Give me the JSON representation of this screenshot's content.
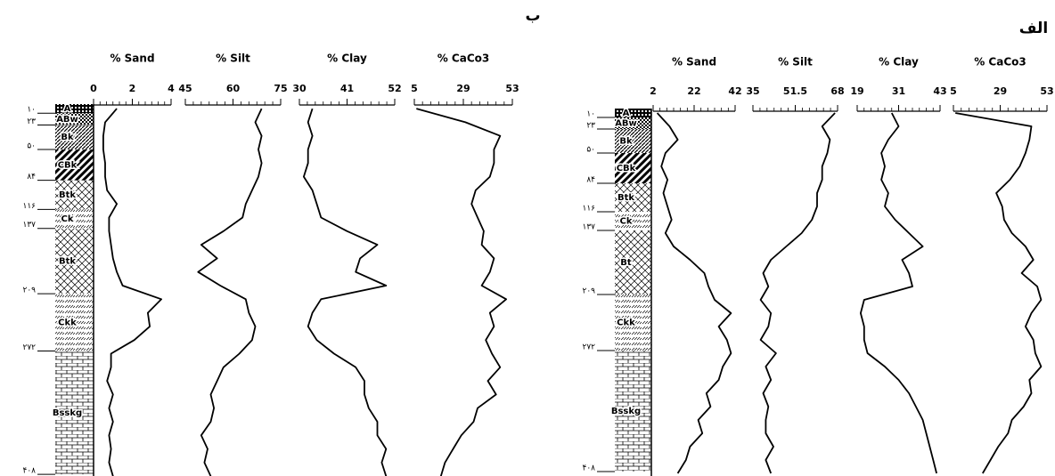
{
  "panels": [
    {
      "label": "ب",
      "horizons": [
        {
          "name": "A",
          "depth": {
            "value": 10,
            "label": "۱۰"
          },
          "fill": "checker-dark"
        },
        {
          "name": "ABw",
          "depth": {
            "value": 23,
            "label": "۲۳"
          },
          "fill": "checker"
        },
        {
          "name": "Bk",
          "depth": {
            "value": 50,
            "label": "۵۰"
          },
          "fill": "hatch"
        },
        {
          "name": "CBk",
          "depth": {
            "value": 84,
            "label": "۸۴"
          },
          "fill": "hatch-bold"
        },
        {
          "name": "Btk",
          "depth": {
            "value": 116,
            "label": "۱۱۶"
          },
          "fill": "lattice"
        },
        {
          "name": "Ck",
          "depth": {
            "value": 137,
            "label": "۱۳۷"
          },
          "fill": "dash"
        },
        {
          "name": "Btk",
          "depth": {
            "value": 209,
            "label": "۲۰۹"
          },
          "fill": "lattice"
        },
        {
          "name": "Ckk",
          "depth": {
            "value": 272,
            "label": "۲۷۲"
          },
          "fill": "dash"
        },
        {
          "name": "Bsskg",
          "depth": {
            "value": 408,
            "label": "۴۰۸"
          },
          "fill": "brick"
        }
      ]
    },
    {
      "label": "الف",
      "horizons": [
        {
          "name": "A",
          "depth": {
            "value": 10,
            "label": "۱۰"
          },
          "fill": "checker-dark"
        },
        {
          "name": "ABw",
          "depth": {
            "value": 23,
            "label": "۲۳"
          },
          "fill": "checker"
        },
        {
          "name": "Bk",
          "depth": {
            "value": 50,
            "label": "۵۰"
          },
          "fill": "hatch"
        },
        {
          "name": "CBk",
          "depth": {
            "value": 84,
            "label": "۸۴"
          },
          "fill": "hatch-bold"
        },
        {
          "name": "Btk",
          "depth": {
            "value": 116,
            "label": "۱۱۶"
          },
          "fill": "lattice"
        },
        {
          "name": "Ck",
          "depth": {
            "value": 137,
            "label": "۱۳۷"
          },
          "fill": "dash"
        },
        {
          "name": "Bt",
          "depth": {
            "value": 209,
            "label": "۲۰۹"
          },
          "fill": "lattice"
        },
        {
          "name": "Ckk",
          "depth": {
            "value": 272,
            "label": "۲۷۲"
          },
          "fill": "dash"
        },
        {
          "name": "Bsskg",
          "depth": {
            "value": 408,
            "label": "۴۰۸"
          },
          "fill": "brick"
        }
      ]
    }
  ],
  "chart_data": [
    {
      "type": "line",
      "title": "% Sand",
      "color": "#000000",
      "xlim": [
        0,
        4
      ],
      "xticks": [
        0,
        2,
        4
      ],
      "depths": [
        5,
        20,
        35,
        50,
        65,
        80,
        95,
        110,
        125,
        140,
        155,
        170,
        185,
        200,
        215,
        230,
        245,
        260,
        275,
        290,
        305,
        320,
        335,
        350,
        365,
        380,
        395,
        410
      ],
      "values": [
        1.2,
        0.6,
        0.5,
        0.5,
        0.6,
        0.6,
        0.7,
        1.2,
        0.8,
        0.8,
        0.9,
        1.0,
        1.2,
        1.5,
        3.5,
        2.8,
        2.9,
        2.1,
        0.9,
        0.9,
        0.7,
        1.0,
        0.8,
        1.0,
        0.8,
        0.9,
        0.8,
        1.0
      ]
    },
    {
      "type": "line",
      "title": "% Silt",
      "color": "#000000",
      "xlim": [
        45,
        75
      ],
      "xticks": [
        45,
        60,
        75
      ],
      "depths": [
        5,
        20,
        35,
        50,
        65,
        80,
        95,
        110,
        125,
        140,
        155,
        170,
        185,
        200,
        215,
        230,
        245,
        260,
        275,
        290,
        305,
        320,
        335,
        350,
        365,
        380,
        395,
        410
      ],
      "values": [
        69,
        67,
        69,
        68,
        69,
        68,
        66,
        64,
        63,
        57,
        50,
        55,
        49,
        56,
        64,
        65,
        67,
        66,
        62,
        57,
        55,
        53,
        54,
        53,
        50,
        52,
        51,
        53
      ]
    },
    {
      "type": "line",
      "title": "% Clay",
      "color": "#000000",
      "xlim": [
        30,
        52
      ],
      "xticks": [
        30,
        41,
        52
      ],
      "depths": [
        5,
        20,
        35,
        50,
        65,
        80,
        95,
        110,
        125,
        140,
        155,
        170,
        185,
        200,
        215,
        230,
        245,
        260,
        275,
        290,
        305,
        320,
        335,
        350,
        365,
        380,
        395,
        410
      ],
      "values": [
        33,
        32,
        33,
        32,
        32,
        31,
        33,
        34,
        35,
        41,
        48,
        44,
        43,
        50,
        35,
        33,
        32,
        34,
        38,
        43,
        45,
        45,
        46,
        48,
        48,
        50,
        49,
        50
      ]
    },
    {
      "type": "line",
      "title": "% CaCo3",
      "color": "#000000",
      "xlim": [
        5,
        53
      ],
      "xticks": [
        5,
        29,
        53
      ],
      "depths": [
        5,
        20,
        35,
        50,
        65,
        80,
        95,
        110,
        125,
        140,
        155,
        170,
        185,
        200,
        215,
        230,
        245,
        260,
        275,
        290,
        305,
        320,
        335,
        350,
        365,
        380,
        395,
        410
      ],
      "values": [
        6,
        30,
        47,
        44,
        44,
        42,
        35,
        33,
        36,
        39,
        38,
        44,
        42,
        38,
        50,
        42,
        44,
        40,
        43,
        47,
        41,
        45,
        36,
        34,
        28,
        24,
        20,
        18
      ]
    },
    {
      "type": "line",
      "title": "% Sand",
      "color": "#000000",
      "xlim": [
        2,
        42
      ],
      "xticks": [
        2,
        22,
        42
      ],
      "depths": [
        5,
        20,
        35,
        50,
        65,
        80,
        95,
        110,
        125,
        140,
        155,
        170,
        185,
        200,
        215,
        230,
        245,
        260,
        275,
        290,
        305,
        320,
        335,
        350,
        365,
        380,
        395,
        410
      ],
      "values": [
        4,
        10,
        14,
        8,
        6,
        9,
        7,
        9,
        11,
        8,
        12,
        20,
        27,
        29,
        32,
        40,
        34,
        38,
        40,
        36,
        34,
        28,
        30,
        24,
        26,
        20,
        18,
        14
      ]
    },
    {
      "type": "line",
      "title": "% Silt",
      "color": "#000000",
      "xlim": [
        35,
        68
      ],
      "xticks": [
        35,
        51.5,
        68
      ],
      "depths": [
        5,
        20,
        35,
        50,
        65,
        80,
        95,
        110,
        125,
        140,
        155,
        170,
        185,
        200,
        215,
        230,
        245,
        260,
        275,
        290,
        305,
        320,
        335,
        350,
        365,
        380,
        395,
        410
      ],
      "values": [
        67,
        62,
        65,
        64,
        62,
        62,
        60,
        60,
        58,
        54,
        48,
        42,
        39,
        41,
        38,
        42,
        41,
        38,
        44,
        40,
        42,
        39,
        41,
        40,
        40,
        43,
        40,
        42
      ]
    },
    {
      "type": "line",
      "title": "% Clay",
      "color": "#000000",
      "xlim": [
        19,
        43
      ],
      "xticks": [
        19,
        31,
        43
      ],
      "depths": [
        5,
        20,
        35,
        50,
        65,
        80,
        95,
        110,
        125,
        140,
        155,
        170,
        185,
        200,
        215,
        230,
        245,
        260,
        275,
        290,
        305,
        320,
        335,
        350,
        365,
        380,
        395,
        410
      ],
      "values": [
        29,
        31,
        28,
        26,
        27,
        26,
        28,
        27,
        30,
        34,
        38,
        32,
        34,
        35,
        21,
        20,
        21,
        21,
        22,
        27,
        31,
        34,
        36,
        38,
        39,
        40,
        41,
        42
      ]
    },
    {
      "type": "line",
      "title": "% CaCo3",
      "color": "#000000",
      "xlim": [
        5,
        53
      ],
      "xticks": [
        5,
        29,
        53
      ],
      "depths": [
        5,
        20,
        35,
        50,
        65,
        80,
        95,
        110,
        125,
        140,
        155,
        170,
        185,
        200,
        215,
        230,
        245,
        260,
        275,
        290,
        305,
        320,
        335,
        350,
        365,
        380,
        395,
        410
      ],
      "values": [
        6,
        45,
        44,
        42,
        39,
        34,
        27,
        30,
        31,
        35,
        42,
        46,
        40,
        48,
        50,
        45,
        42,
        46,
        47,
        50,
        44,
        45,
        41,
        35,
        33,
        28,
        24,
        20
      ]
    }
  ]
}
